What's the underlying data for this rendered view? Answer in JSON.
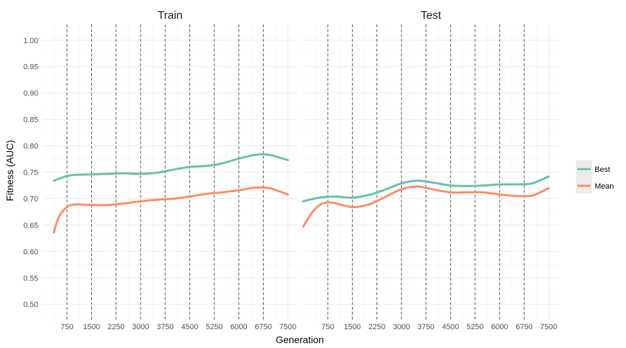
{
  "chart_data": {
    "type": "line",
    "xlabel": "Generation",
    "ylabel": "Fitness (AUC)",
    "xlim": [
      0,
      7800
    ],
    "ylim": [
      0.47,
      1.03
    ],
    "x_ticks": [
      750,
      1500,
      2250,
      3000,
      3750,
      4500,
      5250,
      6000,
      6750,
      7500
    ],
    "x_tick_labels": [
      "750",
      "1500",
      "2250",
      "3000",
      "3750",
      "4500",
      "5250",
      "6000",
      "6750",
      "7500"
    ],
    "y_ticks": [
      0.5,
      0.55,
      0.6,
      0.65,
      0.7,
      0.75,
      0.8,
      0.85,
      0.9,
      0.95,
      1.0
    ],
    "y_tick_labels": [
      "0.50",
      "0.55",
      "0.60",
      "0.65",
      "0.70",
      "0.75",
      "0.80",
      "0.85",
      "0.90",
      "0.95",
      "1.00"
    ],
    "vlines": [
      750,
      1500,
      2250,
      3000,
      3750,
      4500,
      5250,
      6000,
      6750
    ],
    "grid": true,
    "legend_position": "right",
    "series_colors": {
      "Best": "#66c2a5",
      "Mean": "#fc8d62"
    },
    "legend": [
      {
        "name": "Best",
        "color": "#66c2a5"
      },
      {
        "name": "Mean",
        "color": "#fc8d62"
      }
    ],
    "panels": [
      {
        "title": "Train",
        "series": [
          {
            "name": "Best",
            "x": [
              350,
              750,
              1000,
              1500,
              2000,
              2500,
              3000,
              3500,
              4000,
              4500,
              5000,
              5500,
              6000,
              6500,
              6750,
              7000,
              7500
            ],
            "y": [
              0.734,
              0.743,
              0.745,
              0.746,
              0.747,
              0.748,
              0.747,
              0.749,
              0.755,
              0.76,
              0.762,
              0.767,
              0.776,
              0.783,
              0.784,
              0.782,
              0.773
            ]
          },
          {
            "name": "Mean",
            "x": [
              350,
              500,
              750,
              1000,
              1500,
              2000,
              2500,
              3000,
              3500,
              4000,
              4500,
              5000,
              5500,
              6000,
              6500,
              6750,
              7000,
              7500
            ],
            "y": [
              0.636,
              0.665,
              0.684,
              0.689,
              0.688,
              0.688,
              0.691,
              0.695,
              0.698,
              0.7,
              0.704,
              0.709,
              0.712,
              0.716,
              0.721,
              0.721,
              0.719,
              0.708
            ]
          }
        ]
      },
      {
        "title": "Test",
        "series": [
          {
            "name": "Best",
            "x": [
              0,
              500,
              1000,
              1500,
              2000,
              2500,
              3000,
              3500,
              4000,
              4500,
              5000,
              5500,
              6000,
              6500,
              7000,
              7500
            ],
            "y": [
              0.695,
              0.702,
              0.704,
              0.702,
              0.707,
              0.717,
              0.729,
              0.734,
              0.73,
              0.725,
              0.724,
              0.725,
              0.727,
              0.727,
              0.729,
              0.742
            ]
          },
          {
            "name": "Mean",
            "x": [
              0,
              250,
              500,
              750,
              1000,
              1500,
              2000,
              2500,
              3000,
              3500,
              4000,
              4500,
              5000,
              5500,
              6000,
              6500,
              7000,
              7500
            ],
            "y": [
              0.647,
              0.672,
              0.688,
              0.693,
              0.691,
              0.684,
              0.689,
              0.703,
              0.718,
              0.723,
              0.717,
              0.712,
              0.712,
              0.712,
              0.708,
              0.705,
              0.706,
              0.72
            ]
          }
        ]
      }
    ]
  }
}
